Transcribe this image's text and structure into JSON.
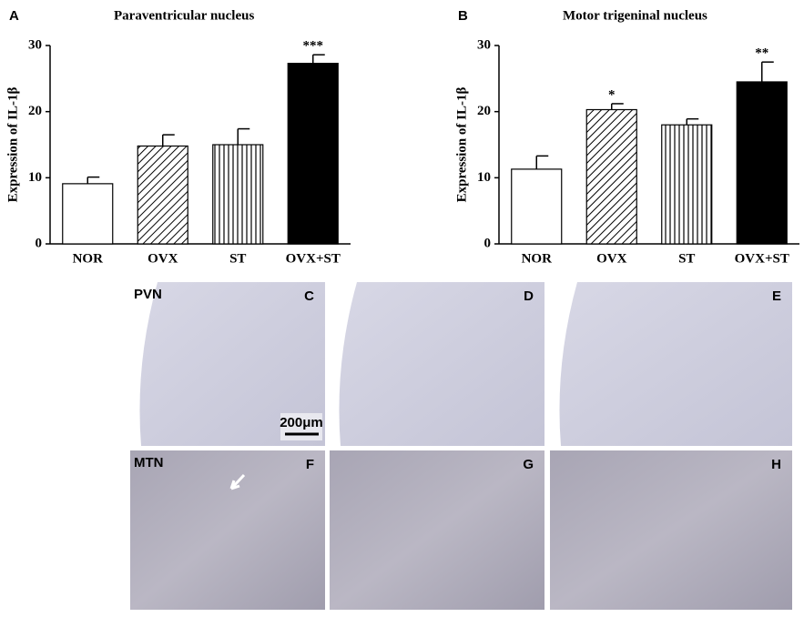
{
  "chart_data": [
    {
      "type": "bar",
      "panel": "A",
      "title": "Paraventricular nucleus",
      "y_label": "Expression of IL-1β",
      "categories": [
        "NOR",
        "OVX",
        "ST",
        "OVX+ST"
      ],
      "values": [
        9.1,
        14.8,
        15.0,
        27.3
      ],
      "errors": [
        1.0,
        1.7,
        2.4,
        1.3
      ],
      "significance": [
        null,
        null,
        null,
        "***"
      ],
      "patterns": [
        "open",
        "diagonal",
        "vertical",
        "solid"
      ],
      "ylim": [
        0,
        30
      ],
      "yticks": [
        0,
        10,
        20,
        30
      ]
    },
    {
      "type": "bar",
      "panel": "B",
      "title": "Motor trigeninal nucleus",
      "y_label": "Expression of IL-1β",
      "categories": [
        "NOR",
        "OVX",
        "ST",
        "OVX+ST"
      ],
      "values": [
        11.3,
        20.3,
        18.0,
        24.5
      ],
      "errors": [
        2.0,
        0.9,
        0.9,
        3.0
      ],
      "significance": [
        null,
        "*",
        null,
        "**"
      ],
      "patterns": [
        "open",
        "diagonal",
        "vertical",
        "solid"
      ],
      "ylim": [
        0,
        30
      ],
      "yticks": [
        0,
        10,
        20,
        30
      ]
    }
  ],
  "micrographs": {
    "rows": [
      {
        "label": "PVN",
        "panels": [
          "C",
          "D",
          "E"
        ]
      },
      {
        "label": "MTN",
        "panels": [
          "F",
          "G",
          "H"
        ]
      }
    ],
    "scale_bar": "200μm"
  }
}
